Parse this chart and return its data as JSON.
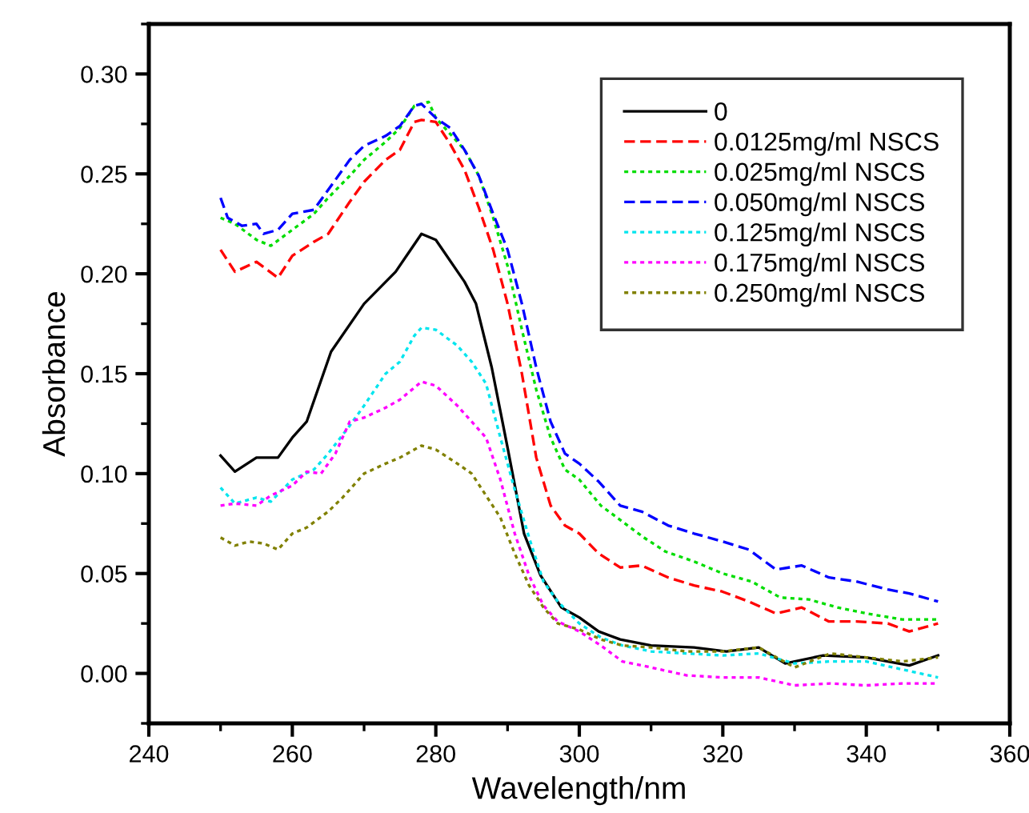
{
  "chart_data": {
    "type": "line",
    "xlabel": "Wavelength/nm",
    "ylabel": "Absorbance",
    "xlim": [
      240,
      360
    ],
    "ylim": [
      -0.025,
      0.325
    ],
    "xticks": [
      240,
      260,
      280,
      300,
      320,
      340,
      360
    ],
    "yticks": [
      {
        "value": 0,
        "label": "0.00"
      },
      {
        "value": 0.05,
        "label": "0.05"
      },
      {
        "value": 0.1,
        "label": "0.10"
      },
      {
        "value": 0.15,
        "label": "0.15"
      },
      {
        "value": 0.2,
        "label": "0.20"
      },
      {
        "value": 0.25,
        "label": "0.25"
      },
      {
        "value": 0.3,
        "label": "0.30"
      }
    ],
    "grid": false,
    "legend": "top right",
    "marker": "none",
    "series": [
      {
        "name": "0",
        "color": "#000000",
        "line_style": "solid",
        "x": [
          250,
          252,
          255,
          258,
          260,
          262,
          265.4,
          270,
          274.4,
          278,
          280,
          284,
          285.6,
          287.8,
          290,
          292.3,
          294.6,
          297.5,
          300,
          302.7,
          305.7,
          310,
          316,
          320.5,
          325,
          328.7,
          334,
          340,
          346,
          350
        ],
        "values": [
          0.109,
          0.101,
          0.108,
          0.108,
          0.118,
          0.126,
          0.161,
          0.185,
          0.201,
          0.22,
          0.217,
          0.196,
          0.185,
          0.153,
          0.113,
          0.07,
          0.049,
          0.033,
          0.028,
          0.021,
          0.017,
          0.014,
          0.013,
          0.011,
          0.013,
          0.005,
          0.009,
          0.008,
          0.004,
          0.009
        ]
      },
      {
        "name": "0.0125mg/ml NSCS",
        "color": "#ff0000",
        "line_style": "dashed",
        "x": [
          250,
          252,
          255,
          258,
          260,
          263,
          265,
          268,
          270,
          273,
          275,
          277,
          278,
          280,
          282,
          284,
          286,
          288,
          290,
          292,
          294,
          296,
          298,
          300,
          302.7,
          305.7,
          308.7,
          312.4,
          316,
          319.9,
          323.6,
          327.4,
          331,
          334.8,
          338.6,
          343,
          346,
          350
        ],
        "values": [
          0.212,
          0.201,
          0.206,
          0.198,
          0.209,
          0.216,
          0.22,
          0.236,
          0.246,
          0.257,
          0.262,
          0.276,
          0.277,
          0.276,
          0.265,
          0.252,
          0.233,
          0.212,
          0.185,
          0.15,
          0.108,
          0.084,
          0.074,
          0.07,
          0.06,
          0.053,
          0.054,
          0.048,
          0.044,
          0.041,
          0.036,
          0.03,
          0.033,
          0.026,
          0.026,
          0.025,
          0.021,
          0.025
        ]
      },
      {
        "name": "0.025mg/ml NSCS",
        "color": "#00dd00",
        "line_style": "dotted",
        "x": [
          250,
          252,
          255,
          257,
          260,
          263,
          265,
          268,
          270,
          273,
          275,
          277,
          279,
          280,
          282,
          284,
          286,
          288,
          290,
          292,
          294,
          296,
          298,
          300,
          303,
          306,
          309,
          312,
          316,
          320,
          324,
          328,
          332,
          336,
          340,
          345,
          350
        ],
        "values": [
          0.228,
          0.225,
          0.217,
          0.214,
          0.222,
          0.23,
          0.238,
          0.249,
          0.257,
          0.266,
          0.273,
          0.284,
          0.286,
          0.278,
          0.27,
          0.262,
          0.249,
          0.228,
          0.204,
          0.172,
          0.142,
          0.118,
          0.102,
          0.097,
          0.084,
          0.076,
          0.068,
          0.061,
          0.056,
          0.05,
          0.046,
          0.038,
          0.037,
          0.033,
          0.03,
          0.027,
          0.027
        ]
      },
      {
        "name": "0.050mg/ml NSCS",
        "color": "#0000ff",
        "line_style": "dashed",
        "x": [
          250,
          251,
          253,
          255,
          256,
          258,
          260,
          263,
          265,
          268,
          270,
          273,
          275,
          277,
          278,
          280,
          282,
          284,
          286,
          288,
          290,
          292,
          294,
          296,
          298,
          300,
          302.7,
          305.7,
          308.7,
          312.4,
          316,
          320,
          323.6,
          327.4,
          331,
          334.8,
          338.6,
          343,
          346,
          350
        ],
        "values": [
          0.238,
          0.228,
          0.224,
          0.225,
          0.22,
          0.222,
          0.23,
          0.232,
          0.242,
          0.257,
          0.264,
          0.269,
          0.274,
          0.284,
          0.285,
          0.278,
          0.273,
          0.262,
          0.249,
          0.23,
          0.212,
          0.185,
          0.153,
          0.126,
          0.11,
          0.105,
          0.096,
          0.084,
          0.081,
          0.074,
          0.07,
          0.066,
          0.062,
          0.052,
          0.054,
          0.048,
          0.046,
          0.042,
          0.04,
          0.036
        ]
      },
      {
        "name": "0.125mg/ml NSCS",
        "color": "#00e5ee",
        "line_style": "dotted",
        "x": [
          250,
          252,
          255,
          257,
          260,
          263,
          265,
          268,
          270,
          273,
          275,
          277,
          278,
          280,
          283,
          285,
          287,
          289,
          291,
          293,
          295,
          297,
          300,
          303,
          306,
          310,
          315,
          320,
          325,
          330,
          335,
          340,
          345,
          350
        ],
        "values": [
          0.093,
          0.085,
          0.088,
          0.086,
          0.097,
          0.102,
          0.11,
          0.124,
          0.134,
          0.15,
          0.156,
          0.169,
          0.173,
          0.172,
          0.164,
          0.156,
          0.145,
          0.118,
          0.092,
          0.068,
          0.046,
          0.036,
          0.025,
          0.018,
          0.014,
          0.011,
          0.01,
          0.009,
          0.01,
          0.005,
          0.006,
          0.006,
          0.002,
          -0.002
        ]
      },
      {
        "name": "0.175mg/ml NSCS",
        "color": "#ff00ff",
        "line_style": "dotted",
        "x": [
          250,
          252,
          255,
          257,
          260,
          262,
          264,
          266,
          268,
          270,
          273,
          275,
          278,
          280,
          283,
          285,
          287,
          289,
          291,
          293,
          295,
          297,
          300,
          303,
          306,
          310,
          315,
          320,
          325,
          330,
          335,
          340,
          345,
          350
        ],
        "values": [
          0.084,
          0.085,
          0.084,
          0.089,
          0.094,
          0.101,
          0.1,
          0.11,
          0.126,
          0.128,
          0.133,
          0.137,
          0.146,
          0.144,
          0.134,
          0.126,
          0.118,
          0.097,
          0.07,
          0.049,
          0.034,
          0.026,
          0.021,
          0.014,
          0.006,
          0.003,
          -0.001,
          -0.002,
          -0.002,
          -0.006,
          -0.005,
          -0.006,
          -0.005,
          -0.005
        ]
      },
      {
        "name": "0.250mg/ml NSCS",
        "color": "#808000",
        "line_style": "dotted",
        "x": [
          250,
          252,
          254,
          256,
          258,
          260,
          262,
          265,
          267,
          270,
          273,
          275,
          278,
          280,
          283,
          285,
          287,
          289,
          291,
          293,
          295,
          297,
          300,
          303,
          306,
          310,
          315,
          320,
          325,
          330,
          335,
          340,
          345,
          350
        ],
        "values": [
          0.068,
          0.064,
          0.066,
          0.065,
          0.062,
          0.07,
          0.073,
          0.081,
          0.088,
          0.1,
          0.105,
          0.108,
          0.114,
          0.112,
          0.105,
          0.1,
          0.089,
          0.078,
          0.06,
          0.044,
          0.033,
          0.025,
          0.022,
          0.017,
          0.014,
          0.013,
          0.011,
          0.011,
          0.013,
          0.003,
          0.01,
          0.008,
          0.006,
          0.008
        ]
      }
    ]
  }
}
